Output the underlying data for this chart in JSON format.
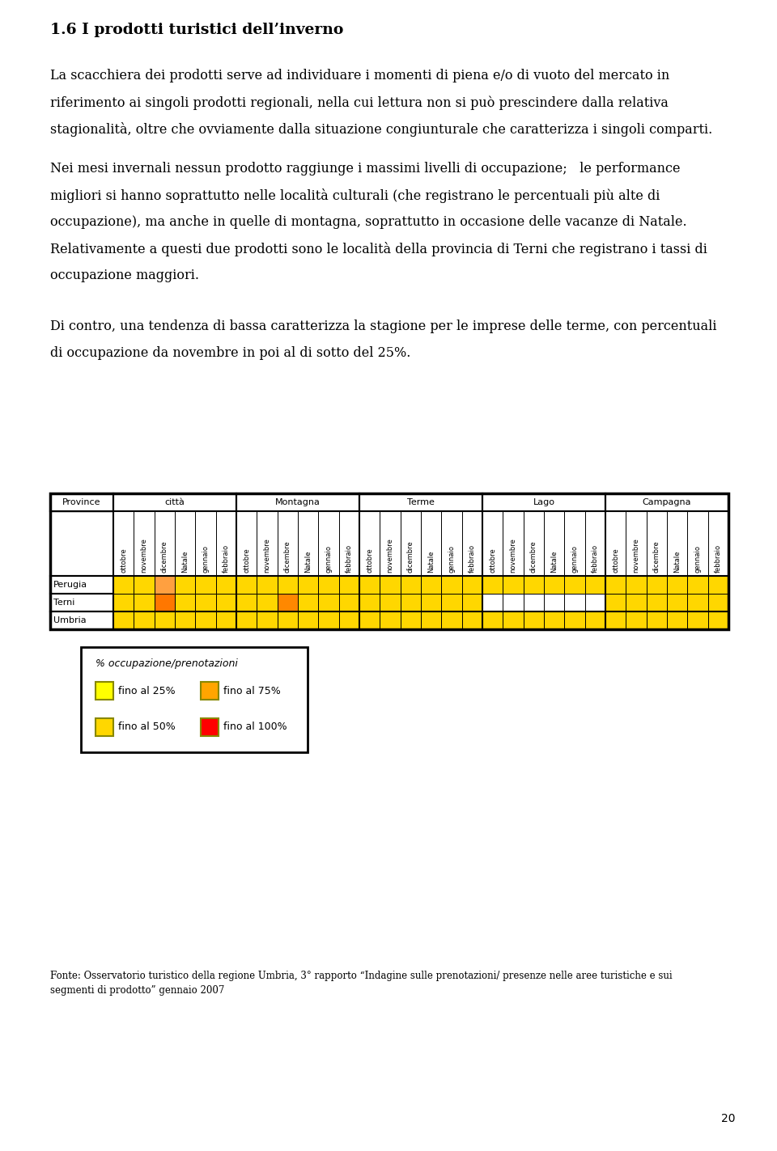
{
  "title": "1.6 I prodotti turistici dell’inverno",
  "text1": "La scacchiera dei prodotti serve ad individuare i momenti di piena e/o di vuoto del mercato in riferimento ai singoli prodotti regionali, nella cui lettura non si può prescindere dalla relativa stagionalità, oltre che ovviamente dalla situazione congiunturale che caratterizza i singoli comparti.",
  "text2_line1": "Nei mesi invernali nessun prodotto raggiunge i massimi livelli di occupazione;   le performance",
  "text2_line2": "migliori si hanno soprattutto nelle località culturali (che registrano le percentuali più alte di",
  "text2_line3": "occupazione), ma anche in quelle di montagna, soprattutto in occasione delle vacanze di Natale.",
  "text2_line4": "Relativamente a questi due prodotti sono le località della provincia di Terni che registrano i tassi di",
  "text2_line5": "occupazione maggiori.",
  "text3_line1": "Di contro, una tendenza di bassa caratterizza la stagione per le imprese delle terme, con percentuali",
  "text3_line2": "di occupazione da novembre in poi al di sotto del 25%.",
  "fonte_line1": "Fonte: Osservatorio turistico della regione Umbria, 3° rapporto “Indagine sulle prenotazioni/ presenze nelle aree turistiche e sui",
  "fonte_line2": "segmenti di prodotto” gennaio 2007",
  "page_num": "20",
  "categories": [
    "città",
    "Montagna",
    "Terme",
    "Lago",
    "Campagna"
  ],
  "months": [
    "ottobre",
    "novembre",
    "dicembre",
    "Natale",
    "gennaio",
    "febbraio"
  ],
  "rows": [
    "Perugia",
    "Terni",
    "Umbria"
  ],
  "cell_data": {
    "Perugia": {
      "città": [
        "#FFD700",
        "#FFD700",
        "#FFA040",
        "#FFD700",
        "#FFD700",
        "#FFD700"
      ],
      "Montagna": [
        "#FFD700",
        "#FFD700",
        "#FFD700",
        "#FFD700",
        "#FFD700",
        "#FFD700"
      ],
      "Terme": [
        "#FFD700",
        "#FFD700",
        "#FFD700",
        "#FFD700",
        "#FFD700",
        "#FFD700"
      ],
      "Lago": [
        "#FFD700",
        "#FFD700",
        "#FFD700",
        "#FFD700",
        "#FFD700",
        "#FFD700"
      ],
      "Campagna": [
        "#FFD700",
        "#FFD700",
        "#FFD700",
        "#FFD700",
        "#FFD700",
        "#FFD700"
      ]
    },
    "Terni": {
      "città": [
        "#FFD700",
        "#FFD700",
        "#FF7700",
        "#FFD700",
        "#FFD700",
        "#FFD700"
      ],
      "Montagna": [
        "#FFD700",
        "#FFD700",
        "#FF8800",
        "#FFD700",
        "#FFD700",
        "#FFD700"
      ],
      "Terme": [
        "#FFD700",
        "#FFD700",
        "#FFD700",
        "#FFD700",
        "#FFD700",
        "#FFD700"
      ],
      "Lago": [
        "#FFFFFF",
        "#FFFFFF",
        "#FFFFFF",
        "#FFFFFF",
        "#FFFFFF",
        "#FFFFFF"
      ],
      "Campagna": [
        "#FFD700",
        "#FFD700",
        "#FFD700",
        "#FFD700",
        "#FFD700",
        "#FFD700"
      ]
    },
    "Umbria": {
      "città": [
        "#FFD700",
        "#FFD700",
        "#FFD700",
        "#FFD700",
        "#FFD700",
        "#FFD700"
      ],
      "Montagna": [
        "#FFD700",
        "#FFD700",
        "#FFD700",
        "#FFD700",
        "#FFD700",
        "#FFD700"
      ],
      "Terme": [
        "#FFD700",
        "#FFD700",
        "#FFD700",
        "#FFD700",
        "#FFD700",
        "#FFD700"
      ],
      "Lago": [
        "#FFD700",
        "#FFD700",
        "#FFD700",
        "#FFD700",
        "#FFD700",
        "#FFD700"
      ],
      "Campagna": [
        "#FFD700",
        "#FFD700",
        "#FFD700",
        "#FFD700",
        "#FFD700",
        "#FFD700"
      ]
    }
  },
  "legend_title": "% occupazione/prenotazioni",
  "legend_items": [
    {
      "label": "fino al 25%",
      "color": "#FFFF00"
    },
    {
      "label": "fino al 75%",
      "color": "#FFA500"
    },
    {
      "label": "fino al 50%",
      "color": "#FFD700"
    },
    {
      "label": "fino al 100%",
      "color": "#FF0000"
    }
  ]
}
